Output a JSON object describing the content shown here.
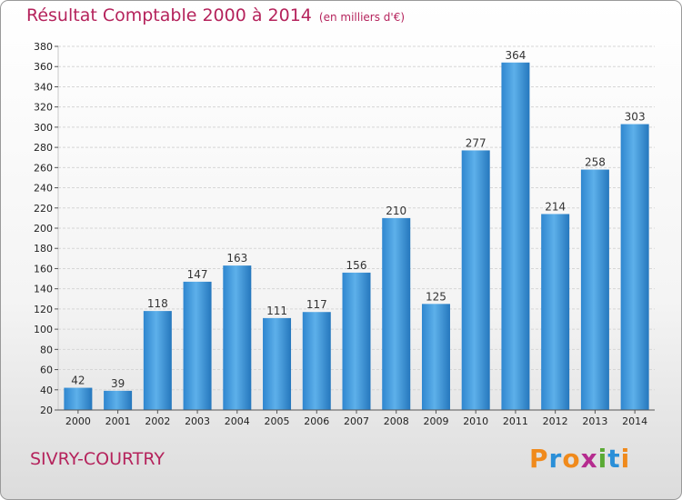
{
  "title": "Résultat Comptable 2000 à 2014",
  "subtitle": "(en milliers d'€)",
  "location": "SIVRY-COURTRY",
  "logo": {
    "text": "Proxiti",
    "letters": [
      {
        "ch": "P",
        "color": "#f08a1c"
      },
      {
        "ch": "r",
        "color": "#2a8fd8"
      },
      {
        "ch": "o",
        "color": "#f08a1c"
      },
      {
        "ch": "x",
        "color": "#b52c8f"
      },
      {
        "ch": "i",
        "color": "#5aaa34"
      },
      {
        "ch": "t",
        "color": "#2a8fd8"
      },
      {
        "ch": "i",
        "color": "#f08a1c"
      }
    ]
  },
  "chart_data": {
    "type": "bar",
    "categories": [
      "2000",
      "2001",
      "2002",
      "2003",
      "2004",
      "2005",
      "2006",
      "2007",
      "2008",
      "2009",
      "2010",
      "2011",
      "2012",
      "2013",
      "2014"
    ],
    "values": [
      42,
      39,
      118,
      147,
      163,
      111,
      117,
      156,
      210,
      125,
      277,
      364,
      214,
      258,
      303
    ],
    "ylim": [
      20,
      380
    ],
    "yticks": [
      20,
      40,
      60,
      80,
      100,
      120,
      140,
      160,
      180,
      200,
      220,
      240,
      260,
      280,
      300,
      320,
      340,
      360,
      380
    ],
    "grid": true,
    "bar_color": "#3a8fd6",
    "title_color": "#b5235c"
  }
}
